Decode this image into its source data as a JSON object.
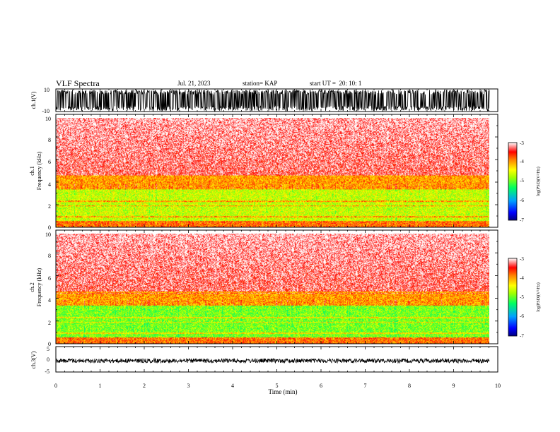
{
  "header": {
    "title": "VLF Spectra",
    "date": "Jul. 21, 2023",
    "station": "station= KAP",
    "start": "start UT =  20: 10: 1"
  },
  "chart_data": [
    {
      "type": "line",
      "name": "waveform-ch1",
      "ylabel": "ch.1(V)",
      "ylim": [
        -10,
        10
      ],
      "yticks": [
        "10",
        "-10"
      ],
      "xlim": [
        0,
        10
      ]
    },
    {
      "type": "heatmap",
      "name": "spectrogram-ch1",
      "ylabel_top": "ch.1",
      "ylabel": "Frequency (kHz)",
      "ylim": [
        0,
        10
      ],
      "yticks": [
        "0",
        "2",
        "4",
        "6",
        "8",
        "10"
      ],
      "xlim": [
        0,
        10
      ],
      "colorbar": {
        "label": "log(PSD)(V²/Hz)",
        "range": [
          -7,
          -3
        ],
        "ticks": [
          "-3",
          "-4",
          "-5",
          "-6",
          "-7"
        ]
      }
    },
    {
      "type": "heatmap",
      "name": "spectrogram-ch2",
      "ylabel_top": "ch.2",
      "ylabel": "Frequency (kHz)",
      "ylim": [
        0,
        10
      ],
      "yticks": [
        "0",
        "2",
        "4",
        "6",
        "8",
        "10"
      ],
      "xlim": [
        0,
        10
      ],
      "colorbar": {
        "label": "log(PSD)(V²/Hz)",
        "range": [
          -7,
          -3
        ],
        "ticks": [
          "-3",
          "-4",
          "-5",
          "-6",
          "-7"
        ]
      }
    },
    {
      "type": "line",
      "name": "waveform-ch3",
      "ylabel": "ch.3(V)",
      "ylim": [
        -5,
        5
      ],
      "yticks": [
        "5",
        "0",
        "-5"
      ],
      "xlim": [
        0,
        10
      ],
      "xlabel": "Time (min)",
      "xticks": [
        "0",
        "1",
        "2",
        "3",
        "4",
        "5",
        "6",
        "7",
        "8",
        "9",
        "10"
      ]
    }
  ],
  "colors": {
    "colormap": [
      "#000080",
      "#0000ff",
      "#00a0ff",
      "#00ff80",
      "#80ff00",
      "#ffff00",
      "#ff8000",
      "#ff0000",
      "#ffffff"
    ]
  }
}
